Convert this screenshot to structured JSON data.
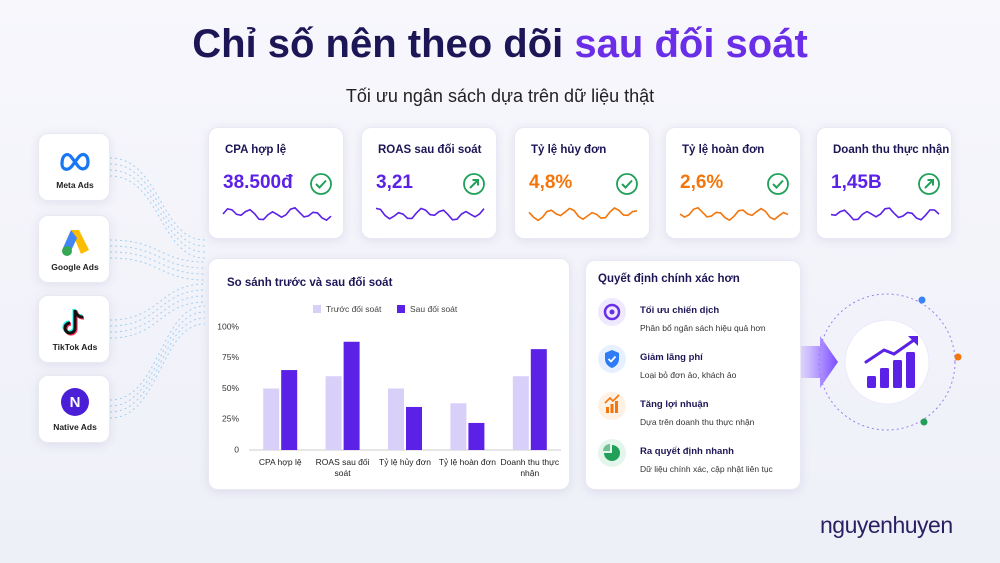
{
  "header": {
    "title": {
      "main": "Chỉ số nên theo dõi",
      "highlight": "sau đối soát"
    },
    "subtitle": "Tối ưu ngân sách dựa trên dữ liệu thật"
  },
  "sources": [
    {
      "label": "Meta Ads"
    },
    {
      "label": "Google Ads"
    },
    {
      "label": "TikTok Ads"
    },
    {
      "label": "Native Ads",
      "icon": "N"
    }
  ],
  "kpis": [
    {
      "label": "CPA hợp lệ",
      "value": "38.500đ",
      "color": "#5b21e6",
      "icon": "check"
    },
    {
      "label": "ROAS sau đối soát",
      "value": "3,21",
      "color": "#5b21e6",
      "icon": "up"
    },
    {
      "label": "Tỷ lệ hủy đơn",
      "value": "4,8%",
      "color": "#f2760c",
      "icon": "check"
    },
    {
      "label": "Tỷ lệ hoàn đơn",
      "value": "2,6%",
      "color": "#f2760c",
      "icon": "check"
    },
    {
      "label": "Doanh thu thực nhận",
      "value": "1,45B",
      "color": "#5b21e6",
      "icon": "up"
    }
  ],
  "chart_data": {
    "type": "bar",
    "title": "So sánh trước và sau đối soát",
    "categories": [
      "CPA hợp lệ",
      "ROAS sau đối soát",
      "Tỷ lệ hủy đơn",
      "Tỷ lệ hoàn đơn",
      "Doanh thu thực nhận"
    ],
    "series": [
      {
        "name": "Trước đối soát",
        "color": "#d9d0fa",
        "values": [
          50,
          60,
          50,
          38,
          60
        ]
      },
      {
        "name": "Sau đối soát",
        "color": "#5b21e6",
        "values": [
          65,
          88,
          35,
          22,
          82
        ]
      }
    ],
    "ylim": [
      0,
      100
    ],
    "yticks": [
      0,
      {
        "value": 25,
        "label": "25%"
      },
      {
        "value": 50,
        "label": "50%"
      },
      {
        "value": 75,
        "label": "75%"
      },
      {
        "value": 100,
        "label": "100%"
      }
    ],
    "grid": false,
    "legend": "top"
  },
  "decisions": {
    "title": "Quyết định chính xác hơn",
    "items": [
      {
        "title": "Tối ưu chiến dịch",
        "text": "Phân bổ ngân sách hiệu quả hơn"
      },
      {
        "title": "Giảm lãng phí",
        "text": "Loại bỏ đơn ảo, khách ảo"
      },
      {
        "title": "Tăng lợi nhuận",
        "text": "Dựa trên doanh thu thực nhận"
      },
      {
        "title": "Ra quyết định nhanh",
        "text": "Dữ liệu chính xác, cập nhật liên tục"
      }
    ]
  },
  "brand": "nguyenhuyen"
}
